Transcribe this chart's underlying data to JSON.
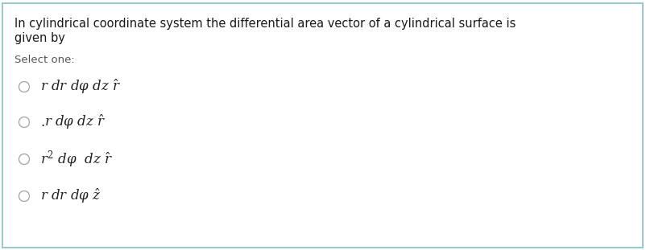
{
  "title_line1": "In cylindrical coordinate system the differential area vector of a cylindrical surface is",
  "title_line2": "given by",
  "select_label": "Select one:",
  "bg_color": "#ffffff",
  "border_color": "#9dc8d0",
  "title_color": "#1a1a1a",
  "select_color": "#555555",
  "option_color": "#222222",
  "circle_edge_color": "#aaaaaa",
  "fig_width": 8.02,
  "fig_height": 3.11,
  "dpi": 100,
  "title_fontsize": 10.5,
  "select_fontsize": 9.5,
  "option_fontsize": 12
}
